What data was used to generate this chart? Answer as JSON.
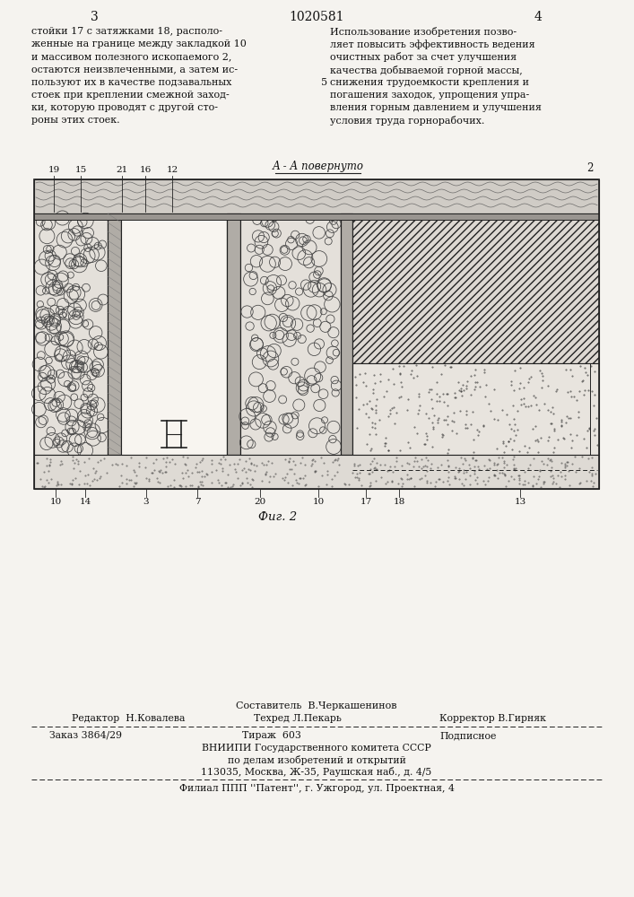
{
  "page_number_left": "3",
  "page_number_center": "1020581",
  "page_number_right": "4",
  "left_column_text": [
    "стойки 17 с затяжками 18, располо-",
    "женные на границе между закладкой 10",
    "и массивом полезного ископаемого 2,",
    "остаются неизвлеченными, а затем ис-",
    "пользуют их в качестве подзавальных",
    "стоек при креплении смежной заход-",
    "ки, которую проводят с другой сто-",
    "роны этих стоек."
  ],
  "right_col_num": "5",
  "right_column_text": [
    "Использование изобретения позво-",
    "ляет повысить эффективность ведения",
    "очистных работ за счет улучшения",
    "качества добываемой горной массы,",
    "снижения трудоемкости крепления и",
    "погашения заходок, упрощения упра-",
    "вления горным давлением и улучшения",
    "условия труда горнорабочих."
  ],
  "fig_label": "Фиг. 2",
  "section_label": "А - А повернуто",
  "footer_sestavitel": "Составитель  В.Черкашенинов",
  "footer_redaktor": "Редактор  Н.Ковалева",
  "footer_tehred": "Техред Л.Пекарь",
  "footer_korrektor": "Корректор В.Гирняк",
  "footer_zakaz": "Заказ 3864/29",
  "footer_tirazh": "Тираж  603",
  "footer_podpisnoe": "Подписное",
  "footer_vniipи": "ВНИИПИ Государственного комитета СССР",
  "footer_po_delam": "по делам изобретений и открытий",
  "footer_address": "113035, Москва, Ж-35, Раушская наб., д. 4/5",
  "footer_filial": "Филиал ППП ''Патент'', г. Ужгород, ул. Проектная, 4",
  "bg_color": "#f5f3ef",
  "text_color": "#111111",
  "line_color": "#222222"
}
